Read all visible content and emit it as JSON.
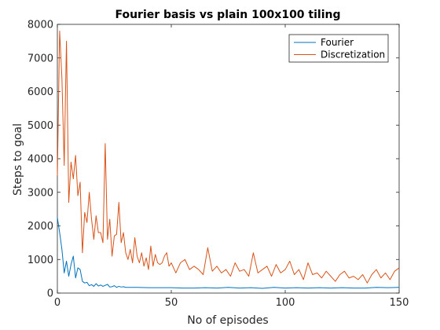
{
  "chart_data": {
    "type": "line",
    "title": "Fourier basis vs plain 100x100 tiling",
    "xlabel": "No of episodes",
    "ylabel": "Steps to goal",
    "xlim": [
      0,
      150
    ],
    "ylim": [
      0,
      8000
    ],
    "xticks": [
      "0",
      "50",
      "100",
      "150"
    ],
    "yticks": [
      "0",
      "1000",
      "2000",
      "3000",
      "4000",
      "5000",
      "6000",
      "7000",
      "8000"
    ],
    "grid": false,
    "legend_position": "top-right",
    "series": [
      {
        "name": "Fourier",
        "color": "#0072BD",
        "x": [
          0,
          1,
          2,
          3,
          4,
          5,
          6,
          7,
          8,
          9,
          10,
          11,
          12,
          13,
          14,
          15,
          16,
          17,
          18,
          19,
          20,
          21,
          22,
          23,
          24,
          25,
          26,
          27,
          28,
          29,
          30,
          35,
          40,
          45,
          50,
          55,
          60,
          65,
          70,
          75,
          80,
          85,
          90,
          95,
          100,
          105,
          110,
          115,
          120,
          125,
          130,
          135,
          140,
          145,
          150
        ],
        "y": [
          2250,
          1800,
          1300,
          600,
          950,
          500,
          850,
          1100,
          450,
          750,
          700,
          350,
          300,
          320,
          220,
          250,
          200,
          280,
          210,
          240,
          200,
          230,
          260,
          180,
          190,
          220,
          170,
          200,
          180,
          190,
          170,
          170,
          160,
          160,
          160,
          150,
          150,
          160,
          150,
          170,
          150,
          160,
          140,
          170,
          150,
          160,
          150,
          160,
          150,
          160,
          150,
          150,
          170,
          160,
          170
        ]
      },
      {
        "name": "Discretization",
        "color": "#D95319",
        "x": [
          0,
          1,
          2,
          3,
          4,
          5,
          6,
          7,
          8,
          9,
          10,
          11,
          12,
          13,
          14,
          15,
          16,
          17,
          18,
          19,
          20,
          21,
          22,
          23,
          24,
          25,
          26,
          27,
          28,
          29,
          30,
          31,
          32,
          33,
          34,
          35,
          36,
          37,
          38,
          39,
          40,
          41,
          42,
          43,
          44,
          45,
          46,
          47,
          48,
          49,
          50,
          52,
          54,
          56,
          58,
          60,
          62,
          64,
          66,
          68,
          70,
          72,
          74,
          76,
          78,
          80,
          82,
          84,
          86,
          88,
          90,
          92,
          94,
          96,
          98,
          100,
          102,
          104,
          106,
          108,
          110,
          112,
          114,
          116,
          118,
          120,
          122,
          124,
          126,
          128,
          130,
          132,
          134,
          136,
          138,
          140,
          142,
          144,
          146,
          148,
          150
        ],
        "y": [
          3500,
          7800,
          6400,
          3800,
          7500,
          2700,
          3900,
          3400,
          4100,
          2900,
          3300,
          1200,
          2400,
          2100,
          3000,
          2200,
          1600,
          2300,
          1800,
          1800,
          1500,
          4450,
          1600,
          2200,
          1100,
          1700,
          1750,
          2700,
          1500,
          1800,
          1200,
          1000,
          1300,
          900,
          1650,
          1100,
          900,
          1200,
          800,
          1050,
          700,
          1400,
          800,
          1150,
          900,
          850,
          900,
          1100,
          1200,
          800,
          900,
          600,
          900,
          1000,
          700,
          800,
          700,
          550,
          1350,
          650,
          800,
          600,
          700,
          500,
          900,
          650,
          700,
          500,
          1200,
          600,
          700,
          800,
          500,
          850,
          600,
          700,
          950,
          550,
          700,
          400,
          900,
          550,
          600,
          450,
          650,
          500,
          350,
          550,
          650,
          450,
          500,
          400,
          550,
          300,
          550,
          700,
          450,
          600,
          400,
          650,
          750
        ]
      }
    ]
  }
}
